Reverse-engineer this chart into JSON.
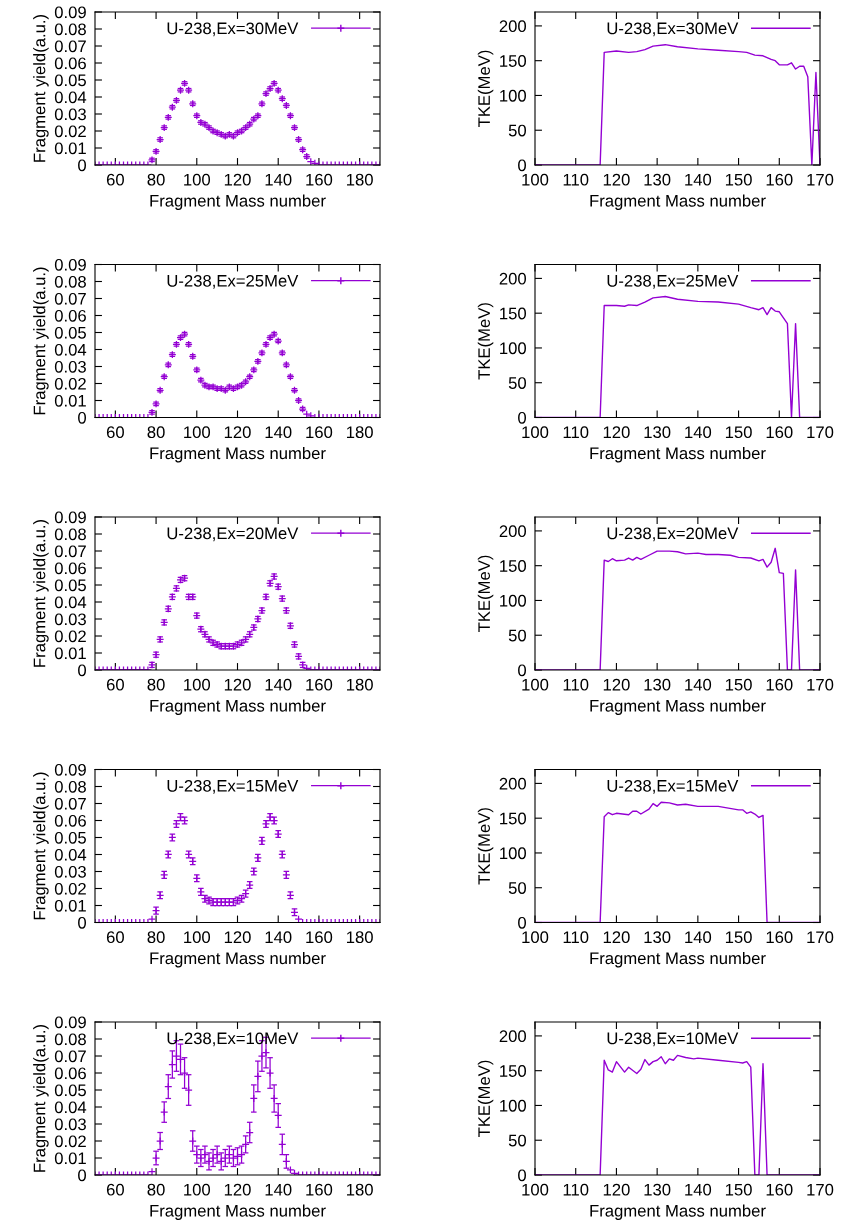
{
  "chart_data": [
    {
      "type": "scatter",
      "xlabel": "Fragment Mass number",
      "ylabel": "Fragment yield(a.u.)",
      "x": [
        50,
        52,
        54,
        56,
        58,
        60,
        62,
        64,
        66,
        68,
        70,
        72,
        74,
        76,
        78,
        80,
        82,
        84,
        86,
        88,
        90,
        92,
        94,
        96,
        98,
        100,
        102,
        104,
        106,
        108,
        110,
        112,
        114,
        116,
        118,
        120,
        122,
        124,
        126,
        128,
        130,
        132,
        134,
        136,
        138,
        140,
        142,
        144,
        146,
        148,
        150,
        152,
        154,
        156,
        158,
        160,
        162,
        164,
        166,
        168,
        170,
        172,
        174,
        176,
        178,
        180,
        182,
        184,
        186,
        188,
        190
      ],
      "xlim": [
        50,
        190
      ],
      "xticks": [
        60,
        80,
        100,
        120,
        140,
        160,
        180
      ],
      "ylim": [
        0,
        0.09
      ],
      "yticks": [
        0,
        0.01,
        0.02,
        0.03,
        0.04,
        0.05,
        0.06,
        0.07,
        0.08,
        0.09
      ],
      "legend": "top right",
      "marker": "cross",
      "series": [
        {
          "name": "U-238,Ex=30MeV",
          "color": "#9400d3",
          "values": [
            0,
            0,
            0,
            0,
            0,
            0,
            0,
            0,
            0,
            0,
            0,
            0,
            0,
            0,
            0.003,
            0.008,
            0.015,
            0.022,
            0.028,
            0.034,
            0.038,
            0.044,
            0.048,
            0.044,
            0.036,
            0.029,
            0.025,
            0.024,
            0.022,
            0.02,
            0.019,
            0.018,
            0.017,
            0.018,
            0.017,
            0.019,
            0.02,
            0.022,
            0.024,
            0.027,
            0.029,
            0.036,
            0.042,
            0.045,
            0.048,
            0.044,
            0.039,
            0.035,
            0.029,
            0.022,
            0.015,
            0.009,
            0.005,
            0.002,
            0.001,
            0,
            0,
            0,
            0,
            0,
            0,
            0,
            0,
            0,
            0,
            0,
            0,
            0,
            0,
            0,
            0
          ],
          "errors": [
            null,
            null,
            null,
            null,
            null,
            null,
            null,
            null,
            null,
            null,
            null,
            null,
            null,
            null,
            0.001,
            0.001,
            0.001,
            0.001,
            0.001,
            0.001,
            0.001,
            0.001,
            0.001,
            0.001,
            0.001,
            0.001,
            0.001,
            0.001,
            0.001,
            0.001,
            0.001,
            0.001,
            0.001,
            0.001,
            0.001,
            0.001,
            0.001,
            0.001,
            0.001,
            0.001,
            0.001,
            0.001,
            0.001,
            0.001,
            0.001,
            0.001,
            0.001,
            0.001,
            0.001,
            0.001,
            0.001,
            0.001,
            0.001,
            null,
            null,
            null,
            null,
            null,
            null,
            null,
            null,
            null,
            null,
            null,
            null,
            null,
            null,
            null,
            null,
            null,
            null
          ]
        }
      ]
    },
    {
      "type": "line",
      "xlabel": "Fragment Mass number",
      "ylabel": "TKE(MeV)",
      "xlim": [
        100,
        170
      ],
      "xticks": [
        100,
        110,
        120,
        130,
        140,
        150,
        160,
        170
      ],
      "ylim": [
        0,
        220
      ],
      "yticks": [
        0,
        50,
        100,
        150,
        200
      ],
      "legend": "top right",
      "series": [
        {
          "name": "U-238,Ex=30MeV",
          "color": "#9400d3",
          "x": [
            100,
            116,
            117,
            120,
            123,
            125,
            127,
            129,
            132,
            135,
            140,
            145,
            150,
            152,
            154,
            156,
            158,
            159,
            160,
            161,
            162,
            163,
            164,
            165,
            166,
            167,
            168,
            169,
            170
          ],
          "values": [
            0,
            0,
            162,
            164,
            162,
            163,
            166,
            171,
            173,
            170,
            167,
            165,
            163,
            162,
            158,
            157,
            152,
            150,
            144,
            144,
            144,
            147,
            138,
            142,
            142,
            127,
            0,
            133,
            0
          ]
        }
      ]
    },
    {
      "type": "scatter",
      "xlabel": "Fragment Mass number",
      "ylabel": "Fragment yield(a.u.)",
      "x": [
        50,
        52,
        54,
        56,
        58,
        60,
        62,
        64,
        66,
        68,
        70,
        72,
        74,
        76,
        78,
        80,
        82,
        84,
        86,
        88,
        90,
        92,
        94,
        96,
        98,
        100,
        102,
        104,
        106,
        108,
        110,
        112,
        114,
        116,
        118,
        120,
        122,
        124,
        126,
        128,
        130,
        132,
        134,
        136,
        138,
        140,
        142,
        144,
        146,
        148,
        150,
        152,
        154,
        156,
        158,
        160,
        162,
        164,
        166,
        168,
        170,
        172,
        174,
        176,
        178,
        180,
        182,
        184,
        186,
        188,
        190
      ],
      "xlim": [
        50,
        190
      ],
      "xticks": [
        60,
        80,
        100,
        120,
        140,
        160,
        180
      ],
      "ylim": [
        0,
        0.09
      ],
      "yticks": [
        0,
        0.01,
        0.02,
        0.03,
        0.04,
        0.05,
        0.06,
        0.07,
        0.08,
        0.09
      ],
      "legend": "top right",
      "marker": "cross",
      "series": [
        {
          "name": "U-238,Ex=25MeV",
          "color": "#9400d3",
          "values": [
            0,
            0,
            0,
            0,
            0,
            0,
            0,
            0,
            0,
            0,
            0,
            0,
            0,
            0,
            0.003,
            0.008,
            0.016,
            0.024,
            0.031,
            0.037,
            0.043,
            0.047,
            0.049,
            0.043,
            0.036,
            0.028,
            0.022,
            0.019,
            0.018,
            0.018,
            0.017,
            0.017,
            0.016,
            0.018,
            0.017,
            0.018,
            0.019,
            0.021,
            0.024,
            0.028,
            0.033,
            0.038,
            0.043,
            0.047,
            0.049,
            0.045,
            0.038,
            0.031,
            0.024,
            0.016,
            0.01,
            0.005,
            0.002,
            0.001,
            0,
            0,
            0,
            0,
            0,
            0,
            0,
            0,
            0,
            0,
            0,
            0,
            0,
            0,
            0,
            0,
            0
          ],
          "errors": [
            null,
            null,
            null,
            null,
            null,
            null,
            null,
            null,
            null,
            null,
            null,
            null,
            null,
            null,
            0.001,
            0.001,
            0.001,
            0.001,
            0.001,
            0.001,
            0.001,
            0.001,
            0.001,
            0.001,
            0.001,
            0.001,
            0.001,
            0.001,
            0.001,
            0.001,
            0.001,
            0.001,
            0.001,
            0.001,
            0.001,
            0.001,
            0.001,
            0.001,
            0.001,
            0.001,
            0.001,
            0.001,
            0.001,
            0.001,
            0.001,
            0.001,
            0.001,
            0.001,
            0.001,
            0.001,
            0.001,
            0.001,
            null,
            null,
            null,
            null,
            null,
            null,
            null,
            null,
            null,
            null,
            null,
            null,
            null,
            null,
            null,
            null,
            null,
            null,
            null
          ]
        }
      ]
    },
    {
      "type": "line",
      "xlabel": "Fragment Mass number",
      "ylabel": "TKE(MeV)",
      "xlim": [
        100,
        170
      ],
      "xticks": [
        100,
        110,
        120,
        130,
        140,
        150,
        160,
        170
      ],
      "ylim": [
        0,
        220
      ],
      "yticks": [
        0,
        50,
        100,
        150,
        200
      ],
      "legend": "top right",
      "series": [
        {
          "name": "U-238,Ex=25MeV",
          "color": "#9400d3",
          "x": [
            100,
            116,
            117,
            120,
            122,
            123,
            125,
            127,
            129,
            132,
            135,
            140,
            145,
            150,
            153,
            155,
            156,
            157,
            158,
            159,
            160,
            162,
            163,
            164,
            165,
            170
          ],
          "values": [
            0,
            0,
            161,
            161,
            160,
            162,
            161,
            166,
            172,
            174,
            170,
            167,
            166,
            163,
            158,
            155,
            158,
            148,
            158,
            153,
            152,
            135,
            0,
            135,
            0,
            0
          ]
        }
      ]
    },
    {
      "type": "scatter",
      "xlabel": "Fragment Mass number",
      "ylabel": "Fragment yield(a.u.)",
      "x": [
        50,
        52,
        54,
        56,
        58,
        60,
        62,
        64,
        66,
        68,
        70,
        72,
        74,
        76,
        78,
        80,
        82,
        84,
        86,
        88,
        90,
        92,
        94,
        96,
        98,
        100,
        102,
        104,
        106,
        108,
        110,
        112,
        114,
        116,
        118,
        120,
        122,
        124,
        126,
        128,
        130,
        132,
        134,
        136,
        138,
        140,
        142,
        144,
        146,
        148,
        150,
        152,
        154,
        156,
        158,
        160,
        162,
        164,
        166,
        168,
        170,
        172,
        174,
        176,
        178,
        180,
        182,
        184,
        186,
        188,
        190
      ],
      "xlim": [
        50,
        190
      ],
      "xticks": [
        60,
        80,
        100,
        120,
        140,
        160,
        180
      ],
      "ylim": [
        0,
        0.09
      ],
      "yticks": [
        0,
        0.01,
        0.02,
        0.03,
        0.04,
        0.05,
        0.06,
        0.07,
        0.08,
        0.09
      ],
      "legend": "top right",
      "marker": "cross",
      "series": [
        {
          "name": "U-238,Ex=20MeV",
          "color": "#9400d3",
          "values": [
            0,
            0,
            0,
            0,
            0,
            0,
            0,
            0,
            0,
            0,
            0,
            0,
            0,
            0,
            0.003,
            0.009,
            0.018,
            0.028,
            0.036,
            0.043,
            0.048,
            0.053,
            0.054,
            0.043,
            0.043,
            0.032,
            0.024,
            0.021,
            0.018,
            0.016,
            0.015,
            0.014,
            0.014,
            0.014,
            0.014,
            0.015,
            0.016,
            0.018,
            0.021,
            0.025,
            0.03,
            0.035,
            0.043,
            0.051,
            0.055,
            0.049,
            0.042,
            0.035,
            0.026,
            0.015,
            0.008,
            0.003,
            0.001,
            0,
            0,
            0,
            0,
            0,
            0,
            0,
            0,
            0,
            0,
            0,
            0,
            0,
            0,
            0,
            0,
            0,
            0
          ],
          "errors": [
            null,
            null,
            null,
            null,
            null,
            null,
            null,
            null,
            null,
            null,
            null,
            null,
            null,
            null,
            0.0015,
            0.0015,
            0.0015,
            0.0015,
            0.0015,
            0.0015,
            0.0015,
            0.0015,
            0.0015,
            0.0015,
            0.0015,
            0.0015,
            0.0015,
            0.0015,
            0.0015,
            0.0015,
            0.0015,
            0.0015,
            0.0015,
            0.0015,
            0.0015,
            0.0015,
            0.0015,
            0.0015,
            0.0015,
            0.0015,
            0.0015,
            0.0015,
            0.0015,
            0.0015,
            0.0015,
            0.0015,
            0.0015,
            0.0015,
            0.0015,
            0.0015,
            0.0015,
            0.0015,
            null,
            null,
            null,
            null,
            null,
            null,
            null,
            null,
            null,
            null,
            null,
            null,
            null,
            null,
            null,
            null,
            null,
            null,
            null
          ]
        }
      ]
    },
    {
      "type": "line",
      "xlabel": "Fragment Mass number",
      "ylabel": "TKE(MeV)",
      "xlim": [
        100,
        170
      ],
      "xticks": [
        100,
        110,
        120,
        130,
        140,
        150,
        160,
        170
      ],
      "ylim": [
        0,
        220
      ],
      "yticks": [
        0,
        50,
        100,
        150,
        200
      ],
      "legend": "top right",
      "series": [
        {
          "name": "U-238,Ex=20MeV",
          "color": "#9400d3",
          "x": [
            100,
            116,
            117,
            118,
            119,
            120,
            122,
            123,
            124,
            125,
            126,
            128,
            130,
            133,
            135,
            137,
            140,
            142,
            145,
            148,
            150,
            153,
            155,
            156,
            157,
            158,
            159,
            160,
            161,
            162,
            163,
            164,
            165,
            170
          ],
          "values": [
            0,
            0,
            158,
            156,
            160,
            157,
            158,
            161,
            158,
            162,
            159,
            165,
            171,
            171,
            170,
            167,
            168,
            166,
            166,
            165,
            162,
            161,
            157,
            159,
            148,
            155,
            175,
            140,
            139,
            0,
            0,
            144,
            0,
            0
          ]
        }
      ]
    },
    {
      "type": "scatter",
      "xlabel": "Fragment Mass number",
      "ylabel": "Fragment yield(a.u.)",
      "x": [
        50,
        52,
        54,
        56,
        58,
        60,
        62,
        64,
        66,
        68,
        70,
        72,
        74,
        76,
        78,
        80,
        82,
        84,
        86,
        88,
        90,
        92,
        94,
        96,
        98,
        100,
        102,
        104,
        106,
        108,
        110,
        112,
        114,
        116,
        118,
        120,
        122,
        124,
        126,
        128,
        130,
        132,
        134,
        136,
        138,
        140,
        142,
        144,
        146,
        148,
        150,
        152,
        154,
        156,
        158,
        160,
        162,
        164,
        166,
        168,
        170,
        172,
        174,
        176,
        178,
        180,
        182,
        184,
        186,
        188,
        190
      ],
      "xlim": [
        50,
        190
      ],
      "xticks": [
        60,
        80,
        100,
        120,
        140,
        160,
        180
      ],
      "ylim": [
        0,
        0.09
      ],
      "yticks": [
        0,
        0.01,
        0.02,
        0.03,
        0.04,
        0.05,
        0.06,
        0.07,
        0.08,
        0.09
      ],
      "legend": "top right",
      "marker": "cross",
      "series": [
        {
          "name": "U-238,Ex=15MeV",
          "color": "#9400d3",
          "values": [
            0,
            0,
            0,
            0,
            0,
            0,
            0,
            0,
            0,
            0,
            0,
            0,
            0,
            0,
            0.002,
            0.007,
            0.016,
            0.028,
            0.04,
            0.05,
            0.058,
            0.062,
            0.06,
            0.04,
            0.036,
            0.026,
            0.018,
            0.014,
            0.013,
            0.012,
            0.012,
            0.012,
            0.012,
            0.012,
            0.012,
            0.013,
            0.014,
            0.017,
            0.022,
            0.03,
            0.038,
            0.048,
            0.058,
            0.062,
            0.06,
            0.052,
            0.04,
            0.028,
            0.016,
            0.006,
            0.002,
            0,
            0,
            0,
            0,
            0,
            0,
            0,
            0,
            0,
            0,
            0,
            0,
            0,
            0,
            0,
            0,
            0,
            0,
            0,
            0
          ],
          "errors": [
            null,
            null,
            null,
            null,
            null,
            null,
            null,
            null,
            null,
            null,
            null,
            null,
            null,
            null,
            null,
            0.002,
            0.002,
            0.002,
            0.002,
            0.002,
            0.002,
            0.002,
            0.002,
            0.002,
            0.002,
            0.002,
            0.002,
            0.002,
            0.002,
            0.002,
            0.002,
            0.002,
            0.002,
            0.002,
            0.002,
            0.002,
            0.002,
            0.002,
            0.002,
            0.002,
            0.002,
            0.002,
            0.002,
            0.002,
            0.002,
            0.002,
            0.002,
            0.002,
            0.002,
            0.002,
            null,
            null,
            null,
            null,
            null,
            null,
            null,
            null,
            null,
            null,
            null,
            null,
            null,
            null,
            null,
            null,
            null,
            null,
            null,
            null,
            null
          ]
        }
      ]
    },
    {
      "type": "line",
      "xlabel": "Fragment Mass number",
      "ylabel": "TKE(MeV)",
      "xlim": [
        100,
        170
      ],
      "xticks": [
        100,
        110,
        120,
        130,
        140,
        150,
        160,
        170
      ],
      "ylim": [
        0,
        220
      ],
      "yticks": [
        0,
        50,
        100,
        150,
        200
      ],
      "legend": "top right",
      "series": [
        {
          "name": "U-238,Ex=15MeV",
          "color": "#9400d3",
          "x": [
            100,
            116,
            117,
            118,
            119,
            120,
            123,
            124,
            125,
            126,
            128,
            129,
            130,
            131,
            133,
            135,
            137,
            140,
            145,
            150,
            151,
            152,
            153,
            154,
            155,
            156,
            157,
            170
          ],
          "values": [
            0,
            0,
            152,
            158,
            155,
            157,
            155,
            160,
            160,
            156,
            163,
            171,
            167,
            173,
            172,
            169,
            170,
            167,
            167,
            162,
            162,
            157,
            159,
            156,
            151,
            154,
            0,
            0
          ]
        }
      ]
    },
    {
      "type": "scatter",
      "xlabel": "Fragment Mass number",
      "ylabel": "Fragment yield(a.u.)",
      "x": [
        50,
        52,
        54,
        56,
        58,
        60,
        62,
        64,
        66,
        68,
        70,
        72,
        74,
        76,
        78,
        80,
        82,
        84,
        86,
        88,
        90,
        92,
        94,
        96,
        98,
        100,
        102,
        104,
        106,
        108,
        110,
        112,
        114,
        116,
        118,
        120,
        122,
        124,
        126,
        128,
        130,
        132,
        134,
        136,
        138,
        140,
        142,
        144,
        146,
        148,
        150,
        152,
        154,
        156,
        158,
        160,
        162,
        164,
        166,
        168,
        170,
        172,
        174,
        176,
        178,
        180,
        182,
        184,
        186,
        188,
        190
      ],
      "xlim": [
        50,
        190
      ],
      "xticks": [
        60,
        80,
        100,
        120,
        140,
        160,
        180
      ],
      "ylim": [
        0,
        0.09
      ],
      "yticks": [
        0,
        0.01,
        0.02,
        0.03,
        0.04,
        0.05,
        0.06,
        0.07,
        0.08,
        0.09
      ],
      "legend": "top right",
      "marker": "cross",
      "series": [
        {
          "name": "U-238,Ex=10MeV",
          "color": "#9400d3",
          "values": [
            0,
            0,
            0,
            0,
            0,
            0,
            0,
            0,
            0,
            0,
            0,
            0,
            0,
            0,
            0.002,
            0.01,
            0.02,
            0.037,
            0.052,
            0.065,
            0.07,
            0.068,
            0.06,
            0.05,
            0.02,
            0.012,
            0.01,
            0.012,
            0.008,
            0.01,
            0.012,
            0.008,
            0.01,
            0.012,
            0.01,
            0.011,
            0.012,
            0.018,
            0.025,
            0.045,
            0.058,
            0.07,
            0.072,
            0.06,
            0.045,
            0.035,
            0.018,
            0.008,
            0.003,
            0.001,
            0,
            0,
            0,
            0,
            0,
            0,
            0,
            0,
            0,
            0,
            0,
            0,
            0,
            0,
            0,
            0,
            0,
            0,
            0,
            0,
            0
          ],
          "errors": [
            null,
            null,
            null,
            null,
            null,
            null,
            null,
            null,
            null,
            null,
            null,
            null,
            null,
            null,
            null,
            0.004,
            0.005,
            0.006,
            0.007,
            0.008,
            0.009,
            0.009,
            0.009,
            0.009,
            0.006,
            0.005,
            0.005,
            0.005,
            0.005,
            0.005,
            0.005,
            0.005,
            0.005,
            0.005,
            0.005,
            0.005,
            0.005,
            0.005,
            0.006,
            0.008,
            0.009,
            0.009,
            0.009,
            0.009,
            0.008,
            0.007,
            0.006,
            0.004,
            null,
            null,
            null,
            null,
            null,
            null,
            null,
            null,
            null,
            null,
            null,
            null,
            null,
            null,
            null,
            null,
            null,
            null,
            null,
            null,
            null,
            null,
            null
          ]
        }
      ]
    },
    {
      "type": "line",
      "xlabel": "Fragment Mass number",
      "ylabel": "TKE(MeV)",
      "xlim": [
        100,
        170
      ],
      "xticks": [
        100,
        110,
        120,
        130,
        140,
        150,
        160,
        170
      ],
      "ylim": [
        0,
        220
      ],
      "yticks": [
        0,
        50,
        100,
        150,
        200
      ],
      "legend": "top right",
      "series": [
        {
          "name": "U-238,Ex=10MeV",
          "color": "#9400d3",
          "x": [
            100,
            116,
            117,
            118,
            119,
            120,
            122,
            123,
            125,
            126,
            127,
            128,
            129,
            130,
            131,
            132,
            133,
            134,
            135,
            137,
            139,
            140,
            145,
            150,
            151,
            152,
            153,
            154,
            155,
            156,
            157,
            170
          ],
          "values": [
            0,
            0,
            165,
            151,
            148,
            163,
            148,
            155,
            146,
            152,
            166,
            158,
            163,
            165,
            170,
            160,
            167,
            165,
            172,
            169,
            167,
            168,
            165,
            162,
            161,
            163,
            155,
            0,
            0,
            160,
            0,
            0
          ]
        }
      ]
    }
  ]
}
